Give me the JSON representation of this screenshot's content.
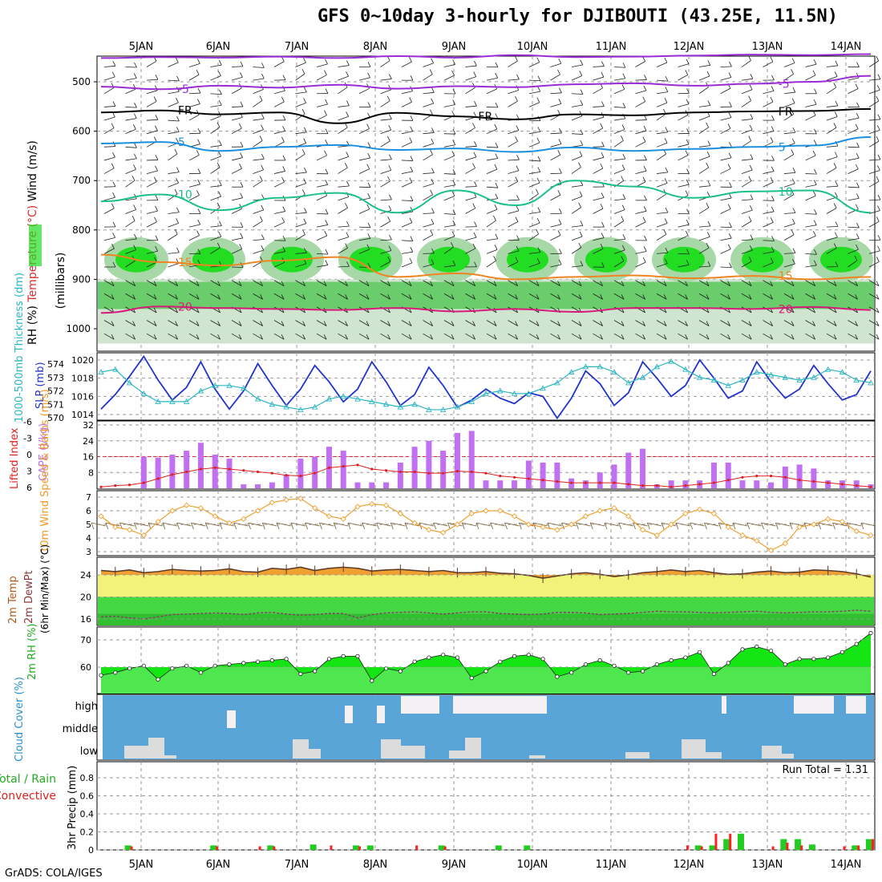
{
  "title": "GFS 0~10day 3-hourly for DJIBOUTI (43.25E, 11.5N)",
  "credit": "GrADS: COLA/IGES",
  "colors": {
    "purple": "#9a2bd6",
    "black": "#000000",
    "blue": "#1b8fe0",
    "teal": "#1abf8c",
    "orange": "#f08420",
    "magenta": "#d81b7a",
    "slp": "#2233cc",
    "thick": "#2bb6c2",
    "cape": "#c070f0",
    "li": "#e02020",
    "wind10": "#f0a030",
    "temp": "#f0a030",
    "dew": "#3cd23c",
    "yellow": "#f2f27a",
    "rh": "#4ee84e",
    "cloud": "#5aa5d8",
    "cloudGray": "#dcdcdc",
    "precip": "#22cc22",
    "conv": "#ff2020"
  },
  "chart_data": [
    {
      "type": "line",
      "panel": "upper-air",
      "xlabels": [
        "5JAN",
        "6JAN",
        "7JAN",
        "8JAN",
        "9JAN",
        "10JAN",
        "11JAN",
        "12JAN",
        "13JAN",
        "14JAN"
      ],
      "ylabel_parts": [
        "Wind (m/s)",
        "Temperature (°C)",
        "RH (%)",
        "(millibars)"
      ],
      "yticks": [
        500,
        600,
        700,
        800,
        900,
        1000
      ],
      "contours": [
        {
          "name": "-10",
          "color": "purple",
          "p": [
            452,
            450,
            451,
            449,
            452,
            448,
            451,
            446,
            450,
            449,
            447,
            445,
            446,
            444
          ]
        },
        {
          "name": "-5",
          "color": "purple",
          "p": [
            510,
            515,
            508,
            512,
            506,
            514,
            509,
            511,
            505,
            503,
            508,
            504,
            500,
            488
          ],
          "label": "-5",
          "labelAt": [
            0.27,
            0.92
          ],
          "labels": [
            "-5",
            "-5"
          ]
        },
        {
          "name": "FR",
          "color": "black",
          "p": [
            562,
            558,
            566,
            562,
            584,
            563,
            570,
            576,
            566,
            568,
            562,
            560,
            559,
            555
          ],
          "labels": [
            "FR",
            "FR",
            "FR"
          ]
        },
        {
          "name": "5",
          "color": "blue",
          "p": [
            625,
            622,
            640,
            632,
            628,
            638,
            635,
            642,
            633,
            640,
            636,
            632,
            629,
            612
          ],
          "labels": [
            "5",
            "5"
          ]
        },
        {
          "name": "10",
          "color": "teal",
          "p": [
            742,
            728,
            760,
            735,
            725,
            765,
            720,
            750,
            700,
            712,
            735,
            722,
            720,
            765
          ],
          "labels": [
            "10",
            "10"
          ]
        },
        {
          "name": "15",
          "color": "orange",
          "p": [
            850,
            865,
            872,
            862,
            855,
            895,
            888,
            900,
            895,
            892,
            898,
            893,
            900,
            895
          ],
          "labels": [
            "15",
            "15"
          ]
        },
        {
          "name": "20",
          "color": "magenta",
          "p": [
            968,
            955,
            958,
            960,
            962,
            958,
            965,
            960,
            966,
            958,
            958,
            960,
            956,
            962
          ],
          "labels": [
            "20",
            "20"
          ]
        }
      ]
    },
    {
      "type": "line",
      "panel": "slp-thickness",
      "ylabel_left": "1000-500mb Thickness (dm)",
      "ylabel_right": "SLP (mb)",
      "left_ticks": [
        570,
        571,
        572,
        573,
        574
      ],
      "right_ticks": [
        1014,
        1016,
        1018,
        1020
      ],
      "series": [
        {
          "name": "SLP (mb)",
          "color": "slp",
          "axis": "right",
          "values": [
            1014.6,
            1016.2,
            1018.2,
            1020.4,
            1017.8,
            1015.6,
            1017.0,
            1019.8,
            1016.8,
            1014.6,
            1016.6,
            1019.6,
            1017.2,
            1015.0,
            1016.8,
            1019.4,
            1017.6,
            1015.4,
            1016.8,
            1019.8,
            1017.6,
            1015.0,
            1016.2,
            1019.2,
            1017.2,
            1014.8,
            1015.6,
            1016.8,
            1015.8,
            1015.2,
            1016.4,
            1016.0,
            1013.6,
            1015.8,
            1018.8,
            1017.4,
            1015.0,
            1016.4,
            1019.8,
            1018.0,
            1016.0,
            1017.2,
            1020.0,
            1018.0,
            1015.8,
            1016.6,
            1019.8,
            1017.6,
            1015.8,
            1016.8,
            1019.4,
            1017.4,
            1015.6,
            1016.2,
            1018.8
          ]
        },
        {
          "name": "Thickness (dm)",
          "color": "thick",
          "axis": "left",
          "values": [
            573.4,
            573.6,
            572.6,
            571.8,
            571.2,
            571.2,
            571.2,
            572.0,
            572.4,
            572.4,
            572.2,
            571.4,
            571.0,
            570.8,
            570.6,
            570.8,
            571.4,
            571.6,
            571.4,
            571.2,
            571.0,
            570.8,
            571.0,
            570.6,
            570.6,
            570.8,
            571.2,
            571.8,
            572.0,
            571.8,
            571.8,
            572.2,
            572.6,
            573.4,
            573.8,
            573.8,
            573.4,
            572.6,
            573.0,
            573.8,
            574.2,
            573.6,
            573.0,
            572.8,
            572.4,
            572.8,
            573.4,
            573.2,
            573.0,
            572.8,
            573.0,
            573.6,
            573.4,
            572.8,
            572.6
          ]
        }
      ]
    },
    {
      "type": "bar",
      "panel": "cape-li",
      "ylabel_left": "Lifted Index",
      "ylabel_right": "CAPE (J/kg)",
      "left_ticks": [
        "6",
        "3",
        "0",
        "-3",
        "-6"
      ],
      "right_ticks": [
        8,
        16,
        24,
        32
      ],
      "cape": [
        0,
        0,
        0,
        16,
        15.5,
        17,
        19,
        23,
        17,
        15,
        2,
        2,
        3,
        7,
        15,
        16,
        21,
        19,
        3,
        3,
        3,
        13,
        21,
        24,
        19,
        28,
        29,
        4,
        4,
        4,
        14,
        13,
        13,
        5,
        4,
        8,
        12,
        18,
        20,
        2,
        4,
        4,
        4,
        13,
        13,
        4,
        4,
        3,
        11,
        12,
        10,
        4,
        4,
        4,
        2
      ],
      "li": [
        5.8,
        5.6,
        5.5,
        5.2,
        4.6,
        4.0,
        3.6,
        3.2,
        3.0,
        3.2,
        3.4,
        3.6,
        3.8,
        4.1,
        4.2,
        3.8,
        3.0,
        2.8,
        2.6,
        3.2,
        3.4,
        3.6,
        3.6,
        3.8,
        3.8,
        3.5,
        3.6,
        3.8,
        4.2,
        4.4,
        4.6,
        4.8,
        5.0,
        5.2,
        5.2,
        5.2,
        5.2,
        5.4,
        5.6,
        5.6,
        5.8,
        5.6,
        5.4,
        5.2,
        4.8,
        4.4,
        4.2,
        4.2,
        4.4,
        4.8,
        5.0,
        5.2,
        5.4,
        5.6,
        5.8
      ]
    },
    {
      "type": "line",
      "panel": "wind10m",
      "ylabel": "10m Wind Speed & Barbs (m/s)",
      "yticks": [
        3,
        4,
        5,
        6,
        7
      ],
      "values": [
        5.6,
        4.8,
        4.6,
        4.2,
        5.2,
        6.0,
        6.4,
        6.2,
        5.6,
        5.1,
        5.4,
        6.0,
        6.6,
        6.8,
        6.9,
        6.2,
        5.6,
        5.4,
        6.3,
        6.5,
        6.4,
        5.8,
        5.1,
        4.6,
        4.4,
        5.0,
        5.8,
        6.0,
        6.0,
        5.6,
        5.0,
        4.8,
        4.6,
        5.0,
        5.6,
        6.0,
        6.2,
        5.6,
        4.6,
        4.2,
        5.0,
        5.8,
        6.1,
        5.8,
        4.8,
        4.2,
        3.8,
        3.1,
        3.6,
        4.8,
        5.0,
        5.4,
        5.2,
        4.5,
        4.2
      ]
    },
    {
      "type": "area",
      "panel": "temp2m",
      "ylabel_parts": [
        "2m Temp",
        "2m DewPt",
        "(6hr Min/Max) (°C)"
      ],
      "yticks": [
        16,
        20,
        24
      ],
      "temp": [
        24.8,
        24.6,
        24.9,
        24.4,
        24.6,
        25.0,
        24.8,
        24.7,
        24.8,
        25.1,
        24.6,
        24.5,
        25.2,
        25.0,
        25.4,
        24.8,
        25.2,
        25.4,
        25.2,
        24.7,
        24.9,
        25.0,
        24.8,
        24.6,
        24.8,
        24.4,
        24.4,
        24.6,
        24.3,
        24.2,
        23.9,
        23.4,
        23.8,
        24.2,
        24.4,
        24.1,
        23.7,
        24.0,
        24.4,
        24.6,
        24.9,
        24.6,
        24.8,
        24.4,
        24.1,
        24.2,
        24.5,
        24.7,
        24.4,
        24.5,
        24.9,
        24.8,
        24.6,
        24.2,
        23.6
      ],
      "dew": [
        16.4,
        16.5,
        16.2,
        16.0,
        16.4,
        16.8,
        16.9,
        17.0,
        17.1,
        17.0,
        16.8,
        17.1,
        17.2,
        16.9,
        16.7,
        16.8,
        17.0,
        17.0,
        16.2,
        16.8,
        17.1,
        17.2,
        17.3,
        17.1,
        16.9,
        17.1,
        17.3,
        17.3,
        17.0,
        16.9,
        16.8,
        16.9,
        17.2,
        17.2,
        17.1,
        16.8,
        16.9,
        17.0,
        17.2,
        17.4,
        17.3,
        17.3,
        17.2,
        17.1,
        17.2,
        17.3,
        17.4,
        17.2,
        17.1,
        17.2,
        17.3,
        17.3,
        17.4,
        17.6,
        17.4
      ]
    },
    {
      "type": "area",
      "panel": "rh2m",
      "ylabel": "2m RH (%)",
      "yticks": [
        60,
        70
      ],
      "values": [
        57,
        58,
        59.5,
        60.5,
        55.5,
        59.5,
        60.5,
        58,
        60.5,
        61,
        61.5,
        62,
        62.5,
        63,
        57.5,
        58.5,
        63,
        64,
        64,
        55,
        59.5,
        58.5,
        62,
        63.5,
        64.5,
        63.5,
        56,
        58.5,
        62,
        64,
        64.5,
        63,
        56.5,
        58,
        61,
        62.5,
        60.5,
        58,
        58.5,
        61,
        62.5,
        63.5,
        65.5,
        57.5,
        61.5,
        66.5,
        67.5,
        66,
        61,
        63,
        63,
        63.5,
        65.5,
        68.5,
        72.5
      ]
    },
    {
      "type": "bar",
      "panel": "cloud",
      "ylabel": "Cloud Cover (%)",
      "ytick_labels": [
        "high",
        "middle",
        "low"
      ]
    },
    {
      "type": "bar",
      "panel": "precip",
      "ylabel_parts": [
        "Total / Rain",
        "Convective",
        "3hr Precip (mm)"
      ],
      "yticks": [
        0,
        0.2,
        0.4,
        0.6,
        0.8
      ],
      "run_total": "Run Total = 1.31",
      "total": [
        0,
        0,
        0.05,
        0,
        0,
        0,
        0,
        0,
        0.05,
        0,
        0,
        0,
        0.05,
        0,
        0,
        0.06,
        0,
        0,
        0.05,
        0.05,
        0,
        0,
        0,
        0,
        0.05,
        0,
        0,
        0,
        0.05,
        0,
        0.05,
        0,
        0,
        0,
        0,
        0,
        0,
        0,
        0,
        0,
        0,
        0,
        0.05,
        0.05,
        0.12,
        0.18,
        0,
        0,
        0.12,
        0.12,
        0.06,
        0,
        0,
        0.05,
        0.12
      ],
      "conv": [
        0,
        0,
        0.04,
        0,
        0,
        0,
        0,
        0,
        0.04,
        0,
        0,
        0.04,
        0.04,
        0,
        0,
        0,
        0.05,
        0,
        0.04,
        0,
        0,
        0,
        0.05,
        0,
        0.04,
        0,
        0,
        0,
        0,
        0,
        0,
        0,
        0,
        0,
        0,
        0,
        0,
        0,
        0,
        0,
        0,
        0.05,
        0.04,
        0.18,
        0.18,
        0,
        0,
        0.04,
        0.08,
        0.05,
        0,
        0,
        0.04,
        0.05,
        0.12
      ]
    }
  ]
}
